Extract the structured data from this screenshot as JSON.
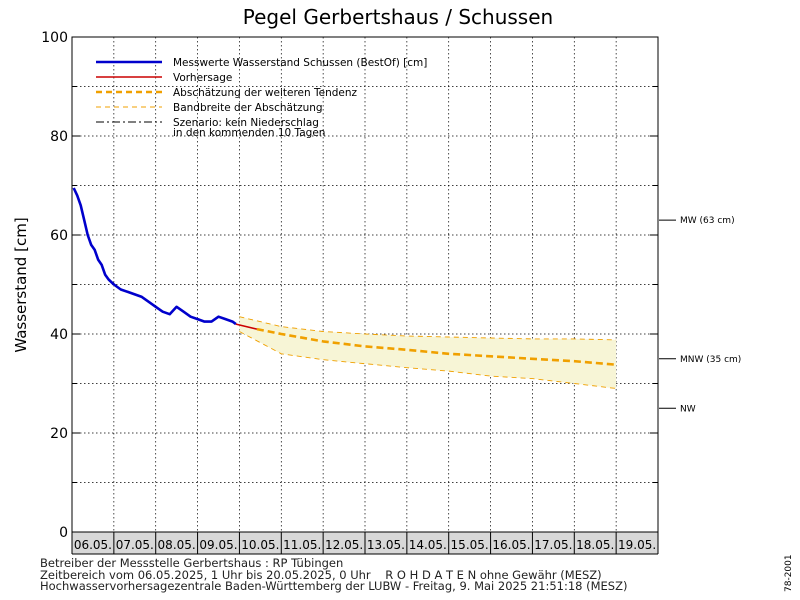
{
  "chart_data": {
    "type": "line",
    "title": "Pegel Gerbertshaus / Schussen",
    "ylabel": "Wasserstand [cm]",
    "ylim": [
      0,
      100
    ],
    "y_ticks": [
      0,
      20,
      40,
      60,
      80,
      100
    ],
    "x_tick_labels": [
      "06.05.",
      "07.05.",
      "08.05.",
      "09.05.",
      "10.05.",
      "11.05.",
      "12.05.",
      "13.05.",
      "14.05.",
      "15.05.",
      "16.05.",
      "17.05.",
      "18.05.",
      "19.05."
    ],
    "x_days": [
      "06.05.2025",
      "20.05.2025"
    ],
    "grid": true,
    "legend_position": "top-left",
    "legend": [
      {
        "label": "Messwerte Wasserstand Schussen   (BestOf)  [cm]",
        "color": "#0000cc",
        "style": "solid"
      },
      {
        "label": "Vorhersage",
        "color": "#cc0000",
        "style": "solid"
      },
      {
        "label": "Abschätzung der weiteren Tendenz",
        "color": "#f0a000",
        "style": "dashed"
      },
      {
        "label": "Bandbreite der Abschätzung",
        "color": "#f0a000",
        "style": "dashed"
      },
      {
        "label": "Szenario: kein Niederschlag",
        "label2": "in den kommenden 10 Tagen",
        "color": "#000000",
        "style": "dashdot"
      }
    ],
    "reference_lines": [
      {
        "label": "MW (63 cm)",
        "value": 63
      },
      {
        "label": "MNW (35 cm)",
        "value": 35
      },
      {
        "label": "NW",
        "value": 25
      }
    ],
    "series": [
      {
        "name": "Messwerte Wasserstand Schussen (BestOf)",
        "x": [
          "06.05.2025 01:00",
          "06.05.2025 03:00",
          "06.05.2025 05:00",
          "06.05.2025 07:00",
          "06.05.2025 09:00",
          "06.05.2025 11:00",
          "06.05.2025 13:00",
          "06.05.2025 15:00",
          "06.05.2025 17:00",
          "06.05.2025 19:00",
          "06.05.2025 21:00",
          "07.05.2025 00:00",
          "07.05.2025 04:00",
          "07.05.2025 08:00",
          "07.05.2025 12:00",
          "07.05.2025 16:00",
          "07.05.2025 20:00",
          "08.05.2025 00:00",
          "08.05.2025 04:00",
          "08.05.2025 08:00",
          "08.05.2025 12:00",
          "08.05.2025 16:00",
          "08.05.2025 20:00",
          "09.05.2025 00:00",
          "09.05.2025 04:00",
          "09.05.2025 08:00",
          "09.05.2025 12:00",
          "09.05.2025 16:00",
          "09.05.2025 20:00",
          "09.05.2025 22:00"
        ],
        "values": [
          69.5,
          68,
          66,
          63,
          60,
          58,
          57,
          55,
          54,
          52,
          51,
          50,
          49,
          48.5,
          48,
          47.5,
          46.5,
          45.5,
          44.5,
          44,
          45.5,
          44.5,
          43.5,
          43,
          42.5,
          42.5,
          43.5,
          43,
          42.5,
          42
        ]
      },
      {
        "name": "Vorhersage",
        "x": [
          "09.05.2025 22:00",
          "10.05.2025 04:00",
          "10.05.2025 10:00"
        ],
        "values": [
          42,
          41.5,
          41
        ]
      },
      {
        "name": "Abschätzung der weiteren Tendenz",
        "x": [
          "10.05.2025 10:00",
          "11.05.2025 00:00",
          "12.05.2025 00:00",
          "13.05.2025 00:00",
          "14.05.2025 00:00",
          "15.05.2025 00:00",
          "16.05.2025 00:00",
          "17.05.2025 00:00",
          "18.05.2025 00:00",
          "19.05.2025 00:00"
        ],
        "values": [
          41,
          40,
          38.5,
          37.5,
          36.8,
          36,
          35.5,
          35,
          34.5,
          33.8
        ]
      },
      {
        "name": "Bandbreite der Abschätzung (oben)",
        "x": [
          "10.05.2025 00:00",
          "11.05.2025 00:00",
          "12.05.2025 00:00",
          "13.05.2025 00:00",
          "14.05.2025 00:00",
          "15.05.2025 00:00",
          "16.05.2025 00:00",
          "17.05.2025 00:00",
          "18.05.2025 00:00",
          "19.05.2025 00:00"
        ],
        "values": [
          43.5,
          41.5,
          40.5,
          40,
          39.6,
          39.4,
          39.2,
          39,
          39,
          38.8
        ]
      },
      {
        "name": "Bandbreite der Abschätzung (unten)",
        "x": [
          "10.05.2025 00:00",
          "11.05.2025 00:00",
          "12.05.2025 00:00",
          "13.05.2025 00:00",
          "14.05.2025 00:00",
          "15.05.2025 00:00",
          "16.05.2025 00:00",
          "17.05.2025 00:00",
          "18.05.2025 00:00",
          "19.05.2025 00:00"
        ],
        "values": [
          40.5,
          36,
          34.8,
          34,
          33.2,
          32.5,
          31.5,
          31,
          30,
          29
        ]
      }
    ]
  },
  "footer": {
    "line1": "Betreiber der Messstelle Gerbertshaus : RP Tübingen",
    "line2": "Zeitbereich vom 06.05.2025, 1 Uhr bis 20.05.2025, 0 Uhr    R O H D A T E N ohne Gewähr (MESZ)",
    "line3": "Hochwasservorhersagezentrale Baden-Württemberg der LUBW - Freitag, 9. Mai 2025 21:51:18 (MESZ)"
  },
  "side_code": "78-2001",
  "colors": {
    "measured": "#0000cc",
    "forecast": "#cc0000",
    "tendency": "#f0a000",
    "band_fill": "#f7f5d6",
    "date_band": "#d8d8d8"
  }
}
